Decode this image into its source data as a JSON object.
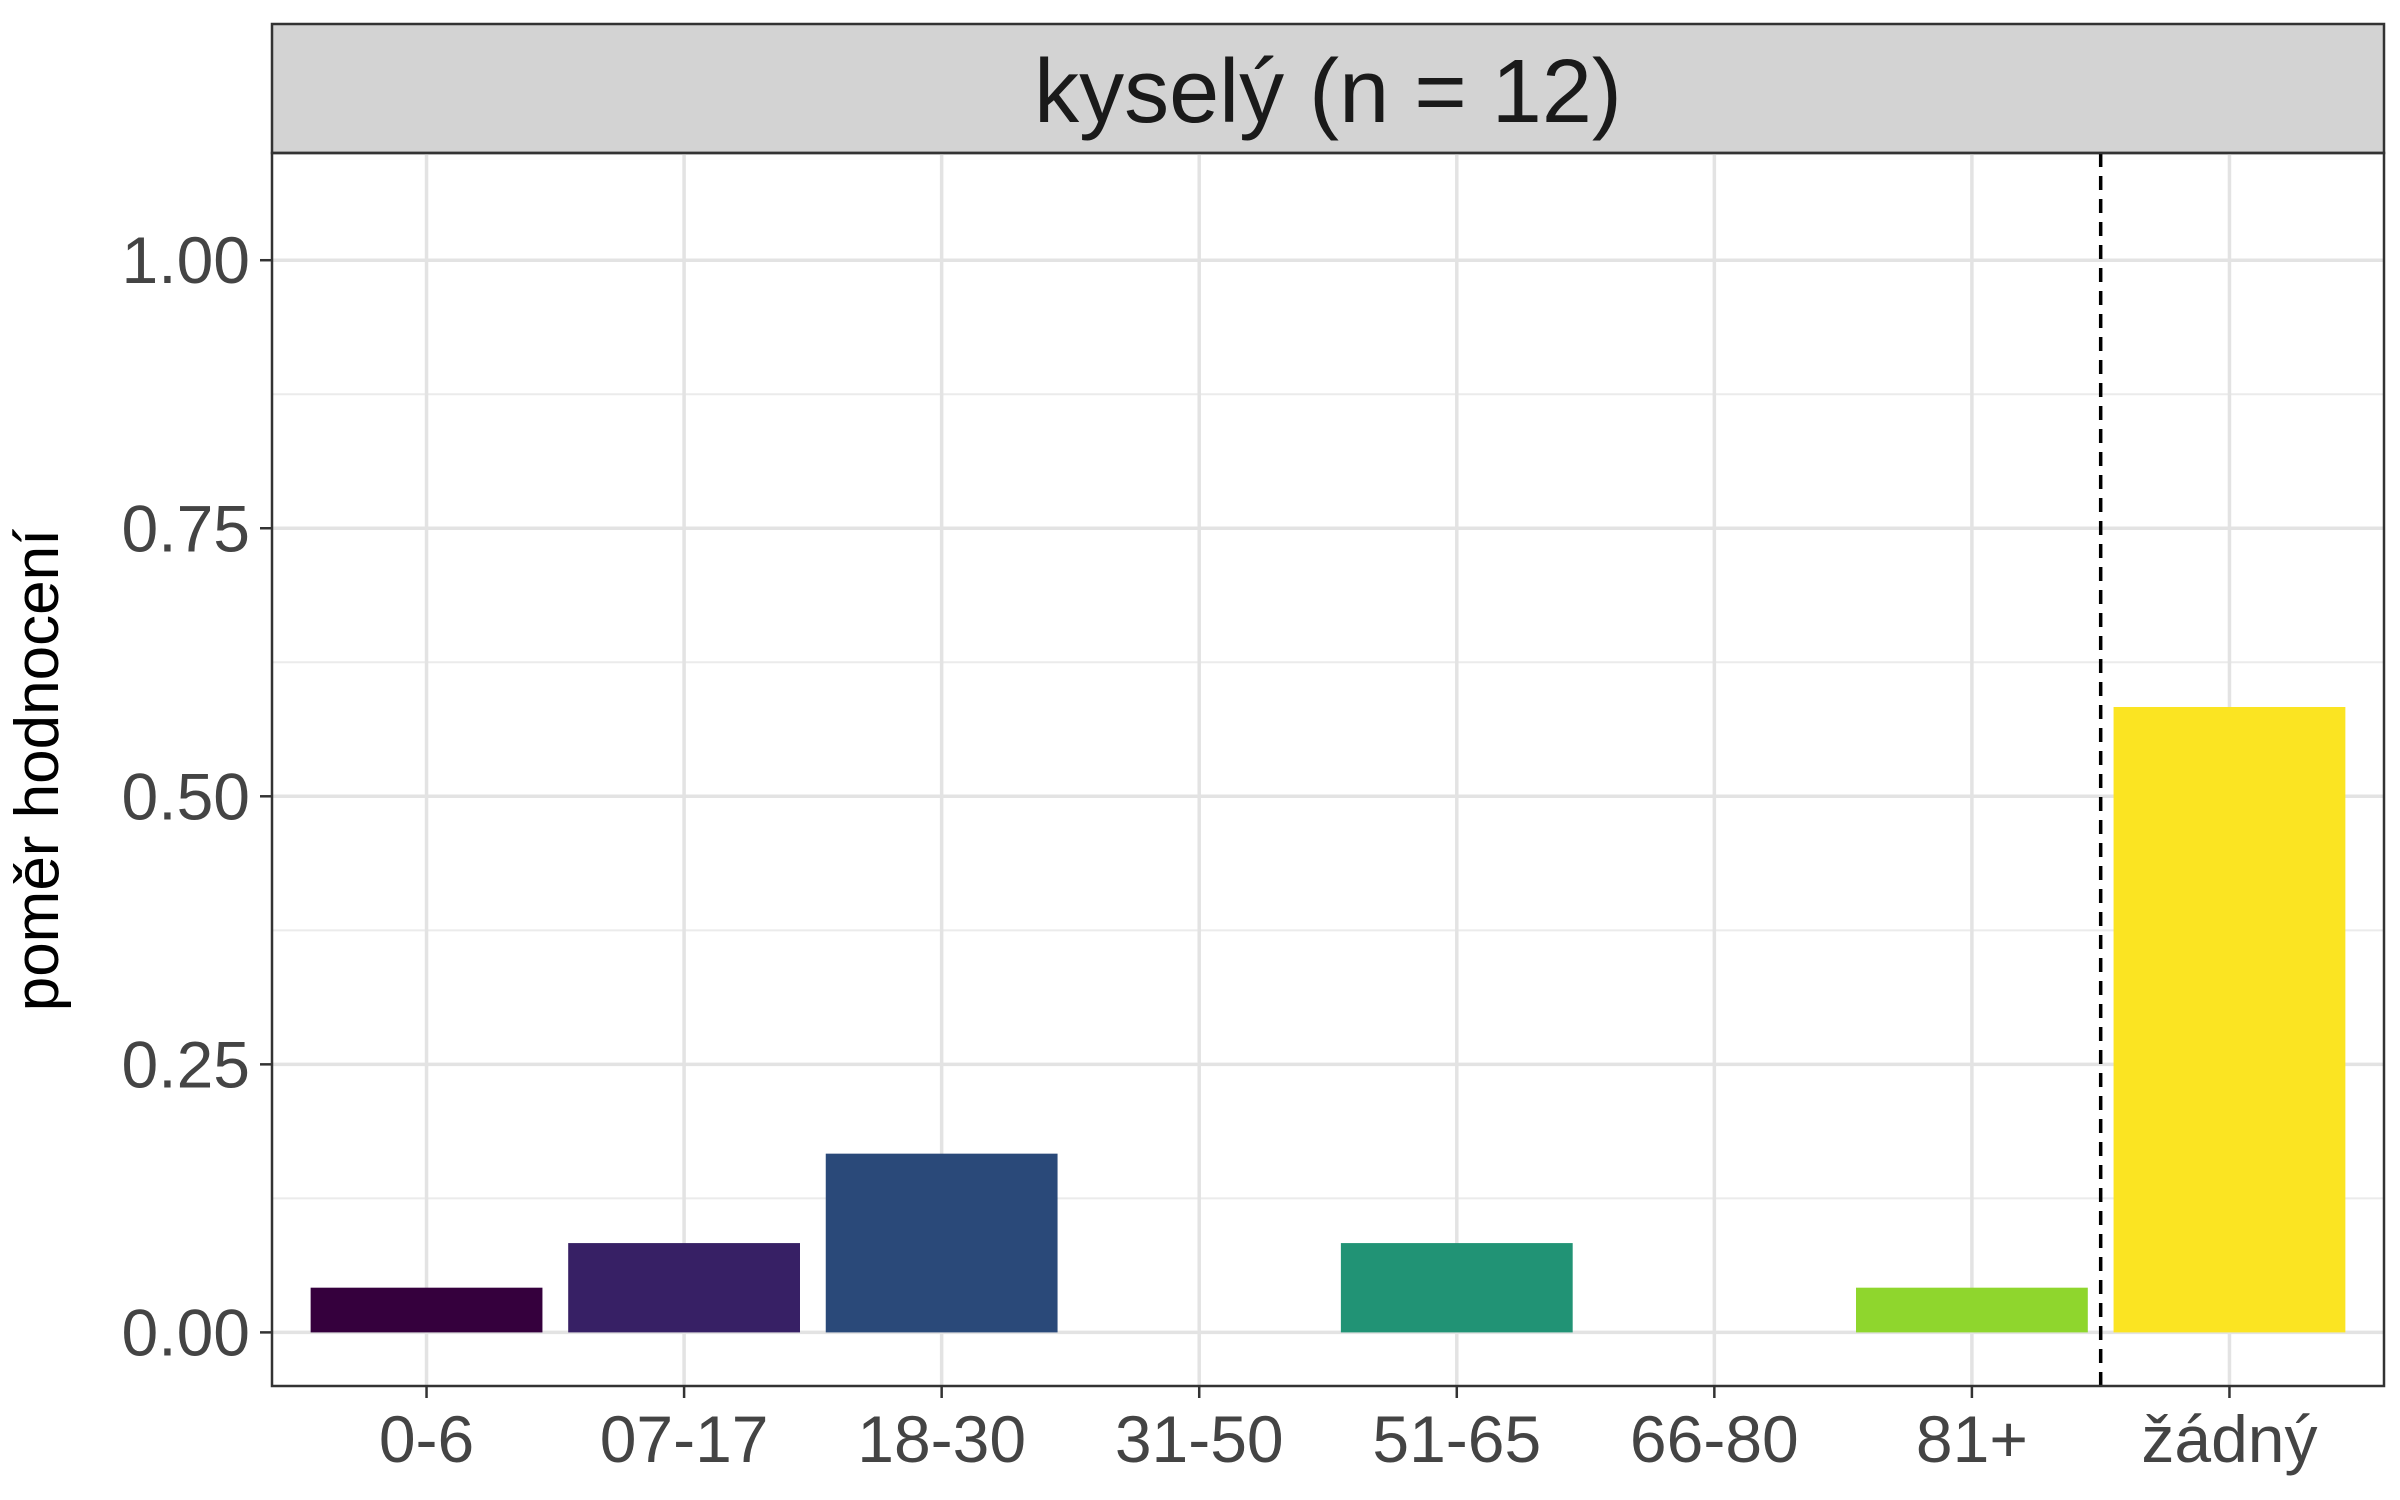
{
  "chart_data": {
    "type": "bar",
    "facet_title": "kyselý (n = 12)",
    "xlabel": "",
    "ylabel": "poměr hodnocení",
    "categories": [
      "0-6",
      "07-17",
      "18-30",
      "31-50",
      "51-65",
      "66-80",
      "81+",
      "žádný"
    ],
    "values": [
      0.0417,
      0.0833,
      0.1667,
      0,
      0.0833,
      0,
      0.0417,
      0.5833
    ],
    "colors": [
      "#35003d",
      "#372065",
      "#2a4979",
      "#21717f",
      "#219375",
      "#58ba53",
      "#8fd62d",
      "#fbe422"
    ],
    "ylim": [
      -0.05,
      1.1
    ],
    "y_ticks": [
      0,
      0.25,
      0.5,
      0.75,
      1
    ],
    "y_tick_labels": [
      "0.00",
      "0.25",
      "0.50",
      "0.75",
      "1.00"
    ],
    "separator_between": [
      "81+",
      "žádný"
    ],
    "grid": true
  }
}
